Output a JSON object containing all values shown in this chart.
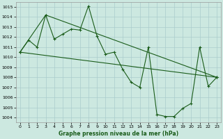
{
  "xlabel": "Graphe pression niveau de la mer (hPa)",
  "background_color": "#cce8e0",
  "line_color": "#1a5c1a",
  "grid_color": "#aacccc",
  "xlim": [
    -0.5,
    23.5
  ],
  "ylim": [
    1003.5,
    1015.5
  ],
  "xticks": [
    0,
    1,
    2,
    3,
    4,
    5,
    6,
    7,
    8,
    9,
    10,
    11,
    12,
    13,
    14,
    15,
    16,
    17,
    18,
    19,
    20,
    21,
    22,
    23
  ],
  "yticks": [
    1004,
    1005,
    1006,
    1007,
    1008,
    1009,
    1010,
    1011,
    1012,
    1013,
    1014,
    1015
  ],
  "series1_x": [
    0,
    1,
    2,
    3,
    4,
    5,
    6,
    7,
    8,
    9,
    10,
    11,
    12,
    13,
    14,
    15,
    16,
    17,
    18,
    19,
    20,
    21,
    22,
    23
  ],
  "series1_y": [
    1010.5,
    1011.7,
    1011.0,
    1014.2,
    1011.8,
    1012.3,
    1012.8,
    1012.7,
    1015.1,
    1012.1,
    1010.3,
    1010.5,
    1008.8,
    1007.5,
    1007.0,
    1011.0,
    1004.3,
    1004.1,
    1004.1,
    1004.9,
    1005.4,
    1011.0,
    1007.1,
    1008.0
  ],
  "series2_x": [
    0,
    23
  ],
  "series2_y": [
    1010.5,
    1008.0
  ],
  "series3_x": [
    0,
    3,
    23
  ],
  "series3_y": [
    1010.5,
    1014.2,
    1008.0
  ]
}
